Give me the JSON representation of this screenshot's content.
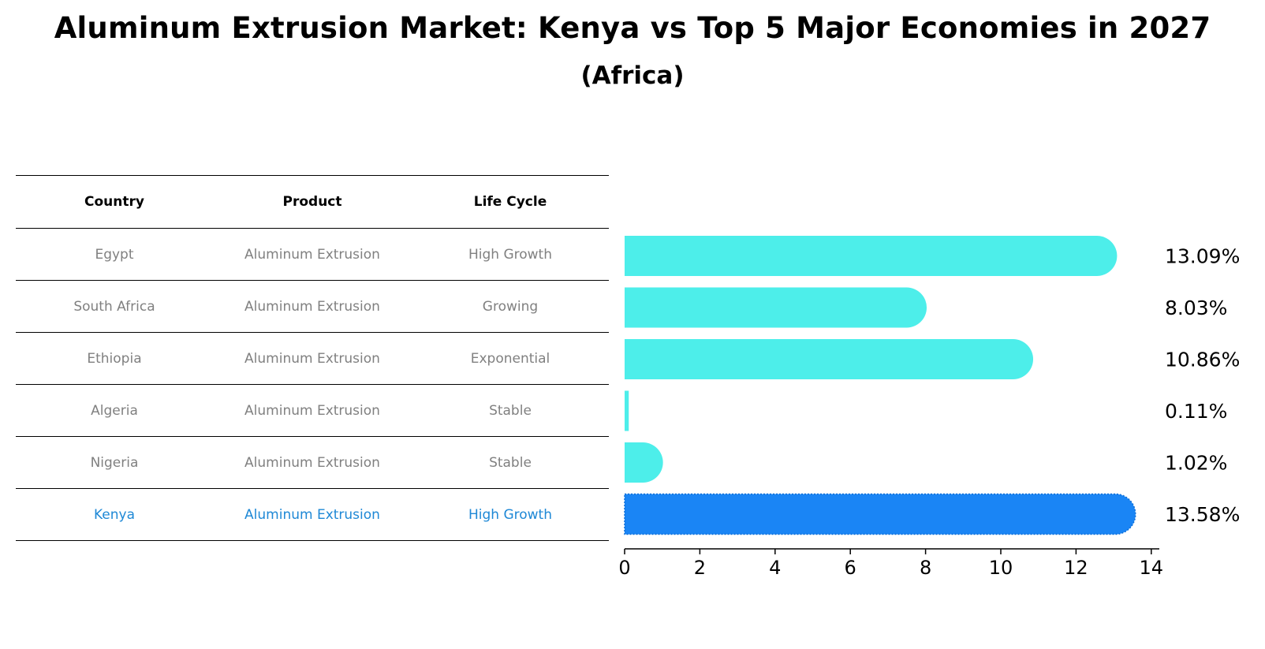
{
  "header": {
    "title": "Aluminum Extrusion Market: Kenya vs Top 5 Major Economies in 2027",
    "subtitle": "(Africa)"
  },
  "table": {
    "columns": [
      "Country",
      "Product",
      "Life Cycle"
    ],
    "rows": [
      {
        "country": "Egypt",
        "product": "Aluminum Extrusion",
        "life_cycle": "High Growth"
      },
      {
        "country": "South Africa",
        "product": "Aluminum Extrusion",
        "life_cycle": "Growing"
      },
      {
        "country": "Ethiopia",
        "product": "Aluminum Extrusion",
        "life_cycle": "Exponential"
      },
      {
        "country": "Algeria",
        "product": "Aluminum Extrusion",
        "life_cycle": "Stable"
      },
      {
        "country": "Nigeria",
        "product": "Aluminum Extrusion",
        "life_cycle": "Stable"
      },
      {
        "country": "Kenya",
        "product": "Aluminum Extrusion",
        "life_cycle": "High Growth"
      }
    ]
  },
  "colors": {
    "bar": "#4deeea",
    "highlight": "#1a85f5",
    "highlight_text": "#1e88d6",
    "muted_text": "#808080"
  },
  "chart_data": {
    "type": "bar",
    "orientation": "horizontal",
    "categories": [
      "Egypt",
      "South Africa",
      "Ethiopia",
      "Algeria",
      "Nigeria",
      "Kenya"
    ],
    "values": [
      13.09,
      8.03,
      10.86,
      0.11,
      1.02,
      13.58
    ],
    "value_labels": [
      "13.09%",
      "8.03%",
      "10.86%",
      "0.11%",
      "1.02%",
      "13.58%"
    ],
    "highlight": "Kenya",
    "xlim": [
      0,
      14.2
    ],
    "xticks": [
      0,
      2,
      4,
      6,
      8,
      10,
      12,
      14
    ],
    "xlabel": "",
    "ylabel": "",
    "grid": false
  }
}
